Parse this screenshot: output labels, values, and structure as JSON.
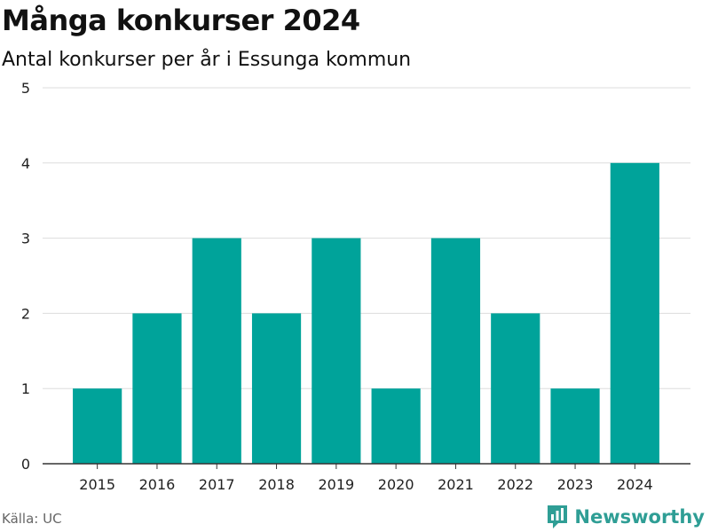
{
  "chart_data": {
    "type": "bar",
    "title": "Många konkurser 2024",
    "subtitle": "Antal konkurser per år i Essunga kommun",
    "categories": [
      "2015",
      "2016",
      "2017",
      "2018",
      "2019",
      "2020",
      "2021",
      "2022",
      "2023",
      "2024"
    ],
    "values": [
      1,
      2,
      3,
      2,
      3,
      1,
      3,
      2,
      1,
      4
    ],
    "ylim": [
      0,
      5
    ],
    "yticks": [
      "0",
      "1",
      "2",
      "3",
      "4",
      "5"
    ],
    "xlabel": "",
    "ylabel": "",
    "grid": true,
    "bar_color": "#00a39a"
  },
  "footer": {
    "source": "Källa: UC",
    "brand_name": "Newsworthy",
    "brand_color": "#2f9e95"
  }
}
